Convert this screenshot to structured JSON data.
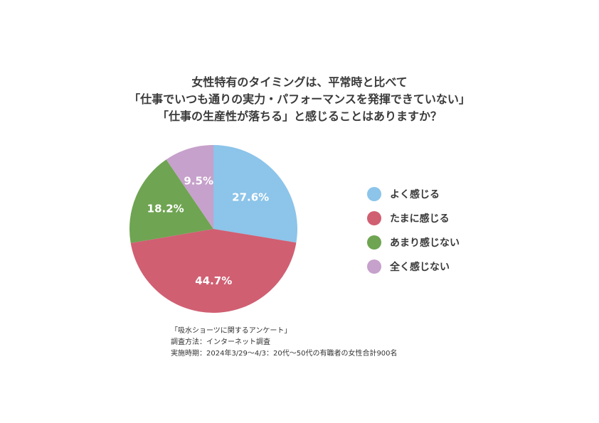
{
  "chart_data": {
    "type": "pie",
    "title": [
      "女性特有のタイミングは、平常時と比べて",
      "「仕事でいつも通りの実力・パフォーマンスを発揮できていない」",
      "「仕事の生産性が落ちる」と感じることはありますか？"
    ],
    "categories": [
      "よく感じる",
      "たまに感じる",
      "あまり感じない",
      "全く感じない"
    ],
    "values": [
      27.6,
      44.7,
      18.2,
      9.5
    ],
    "value_labels": [
      "27.6%",
      "44.7%",
      "18.2%",
      "9.5%"
    ],
    "colors": [
      "#8cc4ea",
      "#d05f72",
      "#6fa452",
      "#c6a1cb"
    ],
    "start_angle": "12 o'clock",
    "direction": "clockwise",
    "legend_position": "right"
  },
  "notes": [
    "「吸水ショーツに関するアンケート」",
    "調査方法：インターネット調査",
    "実施時期：2024年3/29〜4/3：20代〜50代の有職者の女性合計900名"
  ]
}
